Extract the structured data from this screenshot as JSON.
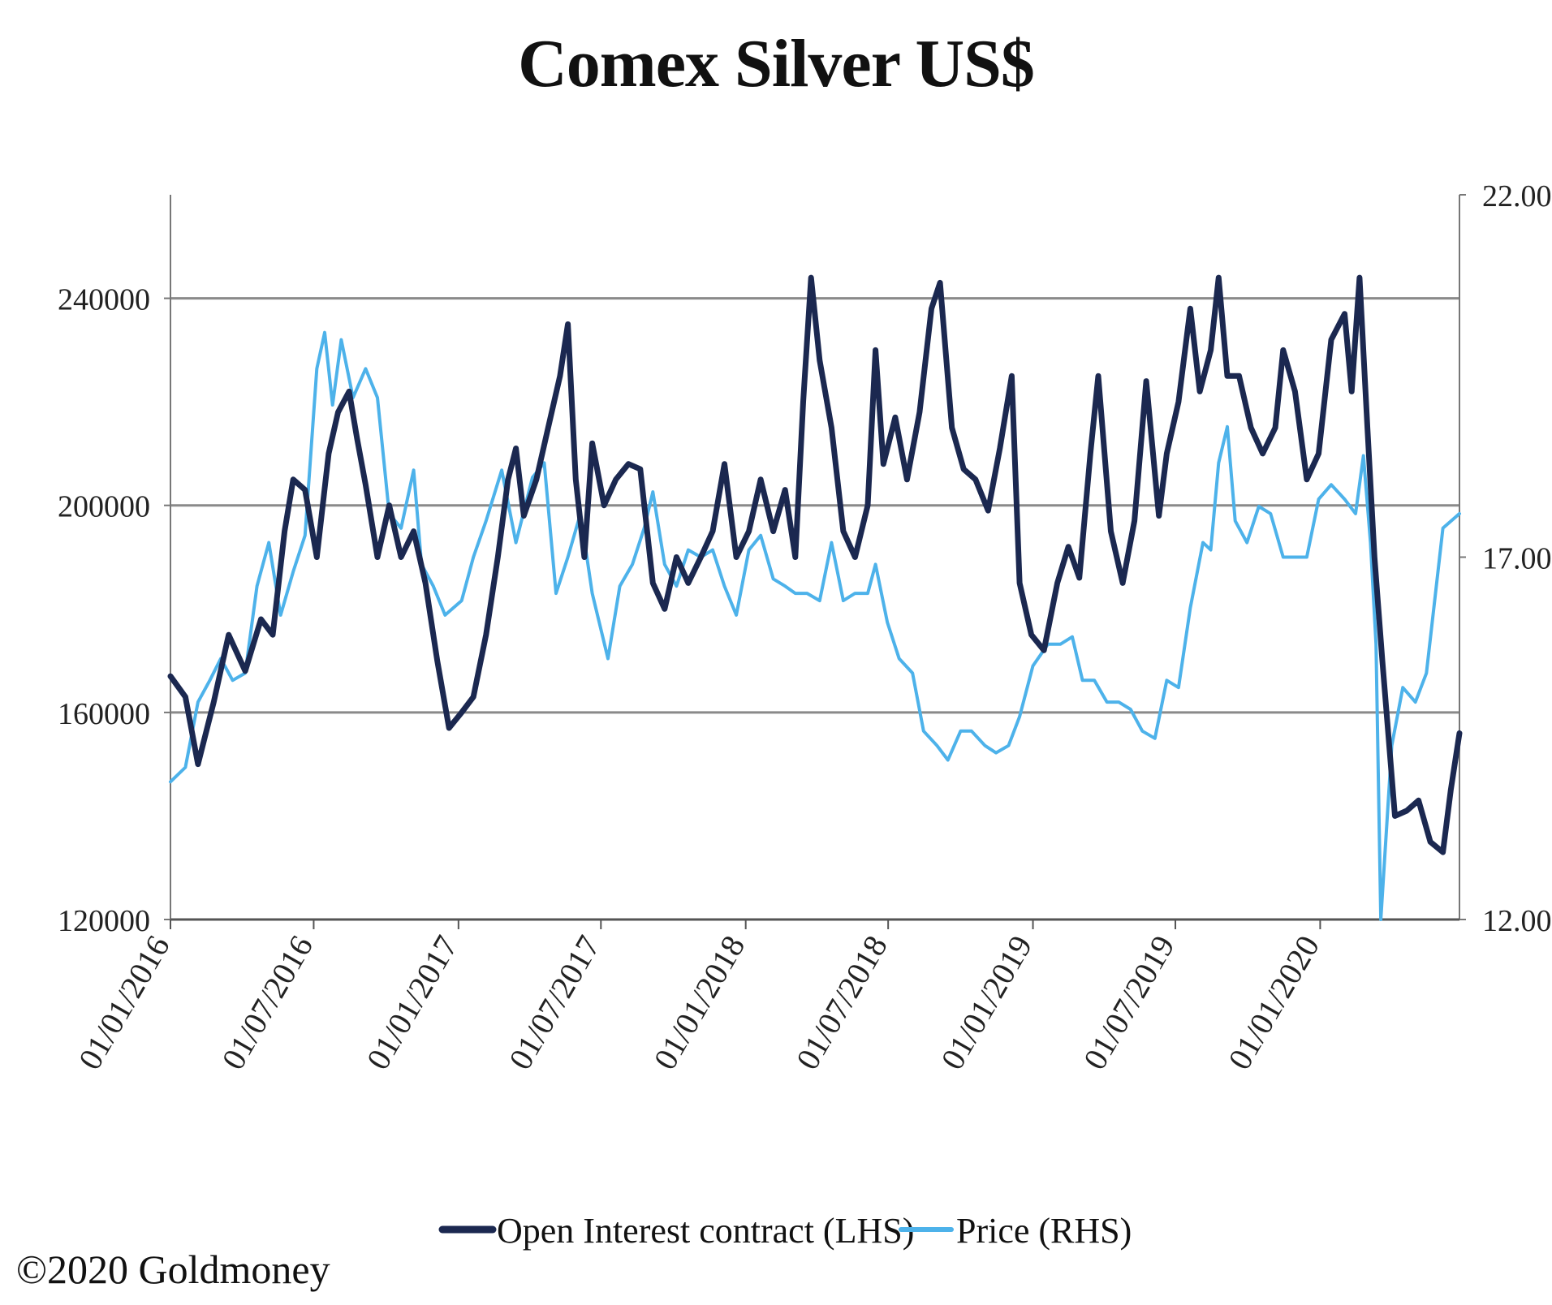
{
  "chart_data": {
    "type": "line",
    "title": "Comex Silver US$",
    "x_axis": {
      "tick_labels": [
        "01/01/2016",
        "01/07/2016",
        "01/01/2017",
        "01/07/2017",
        "01/01/2018",
        "01/07/2018",
        "01/01/2019",
        "01/07/2019",
        "01/01/2020"
      ],
      "range": [
        "2016-01-01",
        "2020-06-26"
      ]
    },
    "y_left": {
      "ticks": [
        120000,
        160000,
        200000,
        240000
      ],
      "tick_labels": [
        "120000",
        "160000",
        "200000",
        "240000"
      ],
      "range": [
        120000,
        260000
      ]
    },
    "y_right": {
      "ticks": [
        12,
        17,
        22
      ],
      "tick_labels": [
        "12.00",
        "17.00",
        "22.00"
      ],
      "range": [
        12,
        22
      ]
    },
    "gridlines": "horizontal",
    "legend_position": "bottom",
    "series": [
      {
        "name": "Open Interest contract (LHS)",
        "axis": "left",
        "color": "#1b2850",
        "points": [
          [
            "2016-01-01",
            167000
          ],
          [
            "2016-01-20",
            163000
          ],
          [
            "2016-02-05",
            150000
          ],
          [
            "2016-02-25",
            162000
          ],
          [
            "2016-03-15",
            175000
          ],
          [
            "2016-04-05",
            168000
          ],
          [
            "2016-04-25",
            178000
          ],
          [
            "2016-05-10",
            175000
          ],
          [
            "2016-05-25",
            195000
          ],
          [
            "2016-06-05",
            205000
          ],
          [
            "2016-06-20",
            203000
          ],
          [
            "2016-07-05",
            190000
          ],
          [
            "2016-07-20",
            210000
          ],
          [
            "2016-08-01",
            218000
          ],
          [
            "2016-08-15",
            222000
          ],
          [
            "2016-08-25",
            213000
          ],
          [
            "2016-09-05",
            204000
          ],
          [
            "2016-09-20",
            190000
          ],
          [
            "2016-10-05",
            200000
          ],
          [
            "2016-10-20",
            190000
          ],
          [
            "2016-11-05",
            195000
          ],
          [
            "2016-11-20",
            185000
          ],
          [
            "2016-12-05",
            170000
          ],
          [
            "2016-12-20",
            157000
          ],
          [
            "2017-01-05",
            160000
          ],
          [
            "2017-01-20",
            163000
          ],
          [
            "2017-02-05",
            175000
          ],
          [
            "2017-02-20",
            190000
          ],
          [
            "2017-03-05",
            205000
          ],
          [
            "2017-03-15",
            211000
          ],
          [
            "2017-03-25",
            198000
          ],
          [
            "2017-04-10",
            205000
          ],
          [
            "2017-04-25",
            215000
          ],
          [
            "2017-05-10",
            225000
          ],
          [
            "2017-05-20",
            235000
          ],
          [
            "2017-05-30",
            205000
          ],
          [
            "2017-06-10",
            190000
          ],
          [
            "2017-06-20",
            212000
          ],
          [
            "2017-07-05",
            200000
          ],
          [
            "2017-07-20",
            205000
          ],
          [
            "2017-08-05",
            208000
          ],
          [
            "2017-08-20",
            207000
          ],
          [
            "2017-09-05",
            185000
          ],
          [
            "2017-09-20",
            180000
          ],
          [
            "2017-10-05",
            190000
          ],
          [
            "2017-10-20",
            185000
          ],
          [
            "2017-11-05",
            190000
          ],
          [
            "2017-11-20",
            195000
          ],
          [
            "2017-12-05",
            208000
          ],
          [
            "2017-12-20",
            190000
          ],
          [
            "2018-01-05",
            195000
          ],
          [
            "2018-01-20",
            205000
          ],
          [
            "2018-02-05",
            195000
          ],
          [
            "2018-02-20",
            203000
          ],
          [
            "2018-03-05",
            190000
          ],
          [
            "2018-03-15",
            220000
          ],
          [
            "2018-03-25",
            244000
          ],
          [
            "2018-04-05",
            228000
          ],
          [
            "2018-04-20",
            215000
          ],
          [
            "2018-05-05",
            195000
          ],
          [
            "2018-05-20",
            190000
          ],
          [
            "2018-06-05",
            200000
          ],
          [
            "2018-06-15",
            230000
          ],
          [
            "2018-06-25",
            208000
          ],
          [
            "2018-07-10",
            217000
          ],
          [
            "2018-07-25",
            205000
          ],
          [
            "2018-08-10",
            218000
          ],
          [
            "2018-08-25",
            238000
          ],
          [
            "2018-09-05",
            243000
          ],
          [
            "2018-09-20",
            215000
          ],
          [
            "2018-10-05",
            207000
          ],
          [
            "2018-10-20",
            205000
          ],
          [
            "2018-11-05",
            199000
          ],
          [
            "2018-11-20",
            211000
          ],
          [
            "2018-12-05",
            225000
          ],
          [
            "2018-12-15",
            185000
          ],
          [
            "2018-12-30",
            175000
          ],
          [
            "2019-01-15",
            172000
          ],
          [
            "2019-02-01",
            185000
          ],
          [
            "2019-02-15",
            192000
          ],
          [
            "2019-03-01",
            186000
          ],
          [
            "2019-03-15",
            210000
          ],
          [
            "2019-03-25",
            225000
          ],
          [
            "2019-04-10",
            195000
          ],
          [
            "2019-04-25",
            185000
          ],
          [
            "2019-05-10",
            197000
          ],
          [
            "2019-05-25",
            224000
          ],
          [
            "2019-06-10",
            198000
          ],
          [
            "2019-06-20",
            210000
          ],
          [
            "2019-07-05",
            220000
          ],
          [
            "2019-07-20",
            238000
          ],
          [
            "2019-08-01",
            222000
          ],
          [
            "2019-08-15",
            230000
          ],
          [
            "2019-08-25",
            244000
          ],
          [
            "2019-09-05",
            225000
          ],
          [
            "2019-09-20",
            225000
          ],
          [
            "2019-10-05",
            215000
          ],
          [
            "2019-10-20",
            210000
          ],
          [
            "2019-11-05",
            215000
          ],
          [
            "2019-11-15",
            230000
          ],
          [
            "2019-11-30",
            222000
          ],
          [
            "2019-12-15",
            205000
          ],
          [
            "2019-12-30",
            210000
          ],
          [
            "2020-01-15",
            232000
          ],
          [
            "2020-02-01",
            237000
          ],
          [
            "2020-02-10",
            222000
          ],
          [
            "2020-02-20",
            244000
          ],
          [
            "2020-03-01",
            215000
          ],
          [
            "2020-03-10",
            190000
          ],
          [
            "2020-03-20",
            170000
          ],
          [
            "2020-04-05",
            140000
          ],
          [
            "2020-04-20",
            141000
          ],
          [
            "2020-05-05",
            143000
          ],
          [
            "2020-05-20",
            135000
          ],
          [
            "2020-06-05",
            133000
          ],
          [
            "2020-06-15",
            145000
          ],
          [
            "2020-06-26",
            156000
          ]
        ]
      },
      {
        "name": "Price (RHS)",
        "axis": "right",
        "color": "#4db2ea",
        "points": [
          [
            "2016-01-01",
            13.9
          ],
          [
            "2016-01-20",
            14.1
          ],
          [
            "2016-02-05",
            15.0
          ],
          [
            "2016-02-20",
            15.3
          ],
          [
            "2016-03-05",
            15.6
          ],
          [
            "2016-03-20",
            15.3
          ],
          [
            "2016-04-05",
            15.4
          ],
          [
            "2016-04-20",
            16.6
          ],
          [
            "2016-05-05",
            17.2
          ],
          [
            "2016-05-20",
            16.2
          ],
          [
            "2016-06-05",
            16.8
          ],
          [
            "2016-06-20",
            17.3
          ],
          [
            "2016-07-05",
            19.6
          ],
          [
            "2016-07-15",
            20.1
          ],
          [
            "2016-07-25",
            19.1
          ],
          [
            "2016-08-05",
            20.0
          ],
          [
            "2016-08-20",
            19.2
          ],
          [
            "2016-09-05",
            19.6
          ],
          [
            "2016-09-20",
            19.2
          ],
          [
            "2016-10-05",
            17.6
          ],
          [
            "2016-10-20",
            17.4
          ],
          [
            "2016-11-05",
            18.2
          ],
          [
            "2016-11-15",
            16.9
          ],
          [
            "2016-11-30",
            16.6
          ],
          [
            "2016-12-15",
            16.2
          ],
          [
            "2017-01-05",
            16.4
          ],
          [
            "2017-01-20",
            17.0
          ],
          [
            "2017-02-05",
            17.5
          ],
          [
            "2017-02-25",
            18.2
          ],
          [
            "2017-03-15",
            17.2
          ],
          [
            "2017-04-05",
            18.1
          ],
          [
            "2017-04-20",
            18.3
          ],
          [
            "2017-05-05",
            16.5
          ],
          [
            "2017-05-20",
            17.0
          ],
          [
            "2017-06-05",
            17.6
          ],
          [
            "2017-06-20",
            16.5
          ],
          [
            "2017-07-10",
            15.6
          ],
          [
            "2017-07-25",
            16.6
          ],
          [
            "2017-08-10",
            16.9
          ],
          [
            "2017-08-25",
            17.4
          ],
          [
            "2017-09-05",
            17.9
          ],
          [
            "2017-09-20",
            16.9
          ],
          [
            "2017-10-05",
            16.6
          ],
          [
            "2017-10-20",
            17.1
          ],
          [
            "2017-11-05",
            17.0
          ],
          [
            "2017-11-20",
            17.1
          ],
          [
            "2017-12-05",
            16.6
          ],
          [
            "2017-12-20",
            16.2
          ],
          [
            "2018-01-05",
            17.1
          ],
          [
            "2018-01-20",
            17.3
          ],
          [
            "2018-02-05",
            16.7
          ],
          [
            "2018-02-20",
            16.6
          ],
          [
            "2018-03-05",
            16.5
          ],
          [
            "2018-03-20",
            16.5
          ],
          [
            "2018-04-05",
            16.4
          ],
          [
            "2018-04-20",
            17.2
          ],
          [
            "2018-05-05",
            16.4
          ],
          [
            "2018-05-20",
            16.5
          ],
          [
            "2018-06-05",
            16.5
          ],
          [
            "2018-06-15",
            16.9
          ],
          [
            "2018-06-30",
            16.1
          ],
          [
            "2018-07-15",
            15.6
          ],
          [
            "2018-08-01",
            15.4
          ],
          [
            "2018-08-15",
            14.6
          ],
          [
            "2018-09-01",
            14.4
          ],
          [
            "2018-09-15",
            14.2
          ],
          [
            "2018-10-01",
            14.6
          ],
          [
            "2018-10-15",
            14.6
          ],
          [
            "2018-11-01",
            14.4
          ],
          [
            "2018-11-15",
            14.3
          ],
          [
            "2018-12-01",
            14.4
          ],
          [
            "2018-12-15",
            14.8
          ],
          [
            "2019-01-01",
            15.5
          ],
          [
            "2019-01-20",
            15.8
          ],
          [
            "2019-02-05",
            15.8
          ],
          [
            "2019-02-20",
            15.9
          ],
          [
            "2019-03-05",
            15.3
          ],
          [
            "2019-03-20",
            15.3
          ],
          [
            "2019-04-05",
            15.0
          ],
          [
            "2019-04-20",
            15.0
          ],
          [
            "2019-05-05",
            14.9
          ],
          [
            "2019-05-20",
            14.6
          ],
          [
            "2019-06-05",
            14.5
          ],
          [
            "2019-06-20",
            15.3
          ],
          [
            "2019-07-05",
            15.2
          ],
          [
            "2019-07-20",
            16.3
          ],
          [
            "2019-08-05",
            17.2
          ],
          [
            "2019-08-15",
            17.1
          ],
          [
            "2019-08-25",
            18.3
          ],
          [
            "2019-09-05",
            18.8
          ],
          [
            "2019-09-15",
            17.5
          ],
          [
            "2019-09-30",
            17.2
          ],
          [
            "2019-10-15",
            17.7
          ],
          [
            "2019-10-30",
            17.6
          ],
          [
            "2019-11-15",
            17.0
          ],
          [
            "2019-11-30",
            17.0
          ],
          [
            "2019-12-15",
            17.0
          ],
          [
            "2019-12-30",
            17.8
          ],
          [
            "2020-01-15",
            18.0
          ],
          [
            "2020-02-01",
            17.8
          ],
          [
            "2020-02-15",
            17.6
          ],
          [
            "2020-02-25",
            18.4
          ],
          [
            "2020-03-05",
            17.2
          ],
          [
            "2020-03-12",
            15.8
          ],
          [
            "2020-03-18",
            12.0
          ],
          [
            "2020-04-01",
            14.4
          ],
          [
            "2020-04-15",
            15.2
          ],
          [
            "2020-05-01",
            15.0
          ],
          [
            "2020-05-15",
            15.4
          ],
          [
            "2020-06-05",
            17.4
          ],
          [
            "2020-06-26",
            17.6
          ]
        ]
      }
    ]
  },
  "copyright": "©2020 Goldmoney"
}
